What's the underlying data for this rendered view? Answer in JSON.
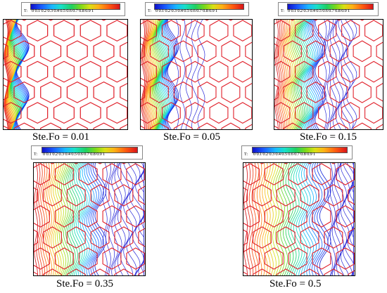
{
  "legend": {
    "variable_label": "T:",
    "ticks": "0  0.1 0.2 0.3 0.4 0.5 0.6 0.7 0.8 0.9  1"
  },
  "panels": [
    {
      "caption": "Ste.Fo = 0.01"
    },
    {
      "caption": "Ste.Fo = 0.05"
    },
    {
      "caption": "Ste.Fo = 0.15"
    },
    {
      "caption": "Ste.Fo = 0.35"
    },
    {
      "caption": "Ste.Fo = 0.5"
    }
  ],
  "colors": {
    "hexagon_edges": "#e0202a",
    "isotherms_cool": "#2a2ad8",
    "plot_border": "#000000"
  }
}
